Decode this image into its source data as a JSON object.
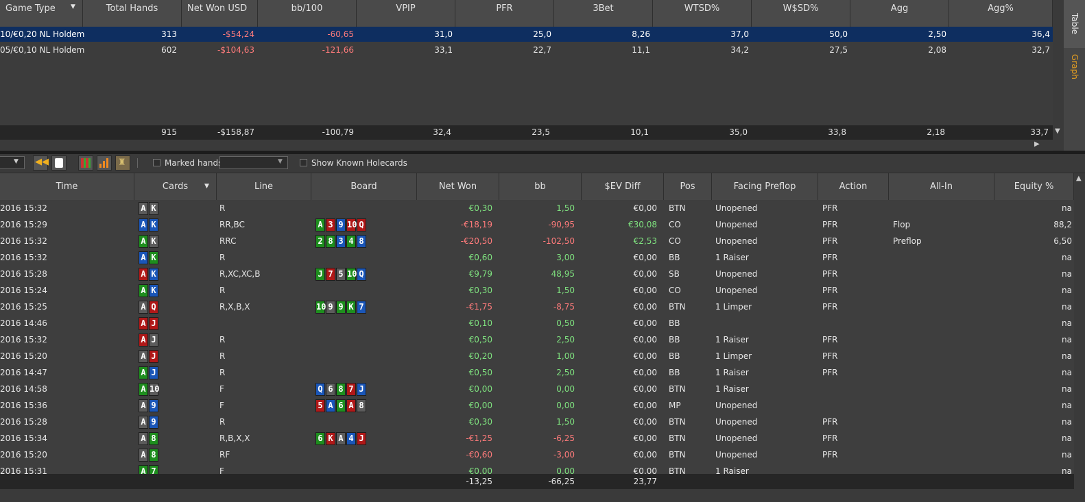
{
  "top_table": {
    "columns": [
      "Game Type",
      "Total Hands",
      "Net Won USD",
      "bb/100",
      "VPIP",
      "PFR",
      "3Bet",
      "WTSD%",
      "W$SD%",
      "Agg",
      "Agg%"
    ],
    "rows": [
      {
        "game": "10/€0,20 NL Holdem",
        "hands": "313",
        "net": "-$54,24",
        "bb100": "-60,65",
        "vpip": "31,0",
        "pfr": "25,0",
        "threebet": "8,26",
        "wtsd": "37,0",
        "wsd": "50,0",
        "agg": "2,50",
        "aggp": "36,4"
      },
      {
        "game": "05/€0,10 NL Holdem",
        "hands": "602",
        "net": "-$104,63",
        "bb100": "-121,66",
        "vpip": "33,1",
        "pfr": "22,7",
        "threebet": "11,1",
        "wtsd": "34,2",
        "wsd": "27,5",
        "agg": "2,08",
        "aggp": "32,7"
      }
    ],
    "totals": {
      "hands": "915",
      "net": "-$158,87",
      "bb100": "-100,79",
      "vpip": "32,4",
      "pfr": "23,5",
      "threebet": "10,1",
      "wtsd": "35,0",
      "wsd": "33,8",
      "agg": "2,18",
      "aggp": "33,7"
    }
  },
  "side_tabs": {
    "table": "Table",
    "graph": "Graph"
  },
  "toolbar": {
    "marked_hands": "Marked hands",
    "show_known": "Show Known Holecards"
  },
  "colors": {
    "selected_row": "#0e2e60",
    "negative": "#ff7b7b",
    "positive": "#7fe27f",
    "graph_tab": "#e8a020"
  },
  "hands_table": {
    "columns": [
      "Time",
      "Cards",
      "Line",
      "Board",
      "Net Won",
      "bb",
      "$EV Diff",
      "Pos",
      "Facing Preflop",
      "Action",
      "All-In",
      "Equity %"
    ],
    "rows": [
      {
        "time": "2016 15:32",
        "cards": [
          [
            "A",
            "s"
          ],
          [
            "K",
            "s"
          ]
        ],
        "line": "R",
        "board": [],
        "net": "€0,30",
        "bb": "1,50",
        "ev": "€0,00",
        "pos": "BTN",
        "facing": "Unopened",
        "action": "PFR",
        "allin": "",
        "equity": "na"
      },
      {
        "time": "2016 15:29",
        "cards": [
          [
            "A",
            "d"
          ],
          [
            "K",
            "d"
          ]
        ],
        "line": "RR,BC",
        "board": [
          [
            "A",
            "c"
          ],
          [
            "3",
            "h"
          ],
          [
            "9",
            "d"
          ],
          [
            "10",
            "h"
          ],
          [
            "Q",
            "h"
          ]
        ],
        "net": "-€18,19",
        "bb": "-90,95",
        "ev": "€30,08",
        "pos": "CO",
        "facing": "Unopened",
        "action": "PFR",
        "allin": "Flop",
        "equity": "88,2"
      },
      {
        "time": "2016 15:32",
        "cards": [
          [
            "A",
            "c"
          ],
          [
            "K",
            "s"
          ]
        ],
        "line": "RRC",
        "board": [
          [
            "2",
            "c"
          ],
          [
            "8",
            "c"
          ],
          [
            "3",
            "d"
          ],
          [
            "4",
            "c"
          ],
          [
            "8",
            "d"
          ]
        ],
        "net": "-€20,50",
        "bb": "-102,50",
        "ev": "€2,53",
        "pos": "CO",
        "facing": "Unopened",
        "action": "PFR",
        "allin": "Preflop",
        "equity": "6,50"
      },
      {
        "time": "2016 15:32",
        "cards": [
          [
            "A",
            "d"
          ],
          [
            "K",
            "c"
          ]
        ],
        "line": "R",
        "board": [],
        "net": "€0,60",
        "bb": "3,00",
        "ev": "€0,00",
        "pos": "BB",
        "facing": "1 Raiser",
        "action": "PFR",
        "allin": "",
        "equity": "na"
      },
      {
        "time": "2016 15:28",
        "cards": [
          [
            "A",
            "h"
          ],
          [
            "K",
            "d"
          ]
        ],
        "line": "R,XC,XC,B",
        "board": [
          [
            "J",
            "c"
          ],
          [
            "7",
            "h"
          ],
          [
            "5",
            "s"
          ],
          [
            "10",
            "c"
          ],
          [
            "Q",
            "d"
          ]
        ],
        "net": "€9,79",
        "bb": "48,95",
        "ev": "€0,00",
        "pos": "SB",
        "facing": "Unopened",
        "action": "PFR",
        "allin": "",
        "equity": "na"
      },
      {
        "time": "2016 15:24",
        "cards": [
          [
            "A",
            "c"
          ],
          [
            "K",
            "d"
          ]
        ],
        "line": "R",
        "board": [],
        "net": "€0,30",
        "bb": "1,50",
        "ev": "€0,00",
        "pos": "CO",
        "facing": "Unopened",
        "action": "PFR",
        "allin": "",
        "equity": "na"
      },
      {
        "time": "2016 15:25",
        "cards": [
          [
            "A",
            "s"
          ],
          [
            "Q",
            "h"
          ]
        ],
        "line": "R,X,B,X",
        "board": [
          [
            "10",
            "c"
          ],
          [
            "9",
            "s"
          ],
          [
            "9",
            "c"
          ],
          [
            "K",
            "c"
          ],
          [
            "7",
            "d"
          ]
        ],
        "net": "-€1,75",
        "bb": "-8,75",
        "ev": "€0,00",
        "pos": "BTN",
        "facing": "1 Limper",
        "action": "PFR",
        "allin": "",
        "equity": "na"
      },
      {
        "time": "2016 14:46",
        "cards": [
          [
            "A",
            "h"
          ],
          [
            "J",
            "h"
          ]
        ],
        "line": "",
        "board": [],
        "net": "€0,10",
        "bb": "0,50",
        "ev": "€0,00",
        "pos": "BB",
        "facing": "",
        "action": "",
        "allin": "",
        "equity": "na"
      },
      {
        "time": "2016 15:32",
        "cards": [
          [
            "A",
            "h"
          ],
          [
            "J",
            "s"
          ]
        ],
        "line": "R",
        "board": [],
        "net": "€0,50",
        "bb": "2,50",
        "ev": "€0,00",
        "pos": "BB",
        "facing": "1 Raiser",
        "action": "PFR",
        "allin": "",
        "equity": "na"
      },
      {
        "time": "2016 15:20",
        "cards": [
          [
            "A",
            "s"
          ],
          [
            "J",
            "h"
          ]
        ],
        "line": "R",
        "board": [],
        "net": "€0,20",
        "bb": "1,00",
        "ev": "€0,00",
        "pos": "BB",
        "facing": "1 Limper",
        "action": "PFR",
        "allin": "",
        "equity": "na"
      },
      {
        "time": "2016 14:47",
        "cards": [
          [
            "A",
            "c"
          ],
          [
            "J",
            "d"
          ]
        ],
        "line": "R",
        "board": [],
        "net": "€0,50",
        "bb": "2,50",
        "ev": "€0,00",
        "pos": "BB",
        "facing": "1 Raiser",
        "action": "PFR",
        "allin": "",
        "equity": "na"
      },
      {
        "time": "2016 14:58",
        "cards": [
          [
            "A",
            "c"
          ],
          [
            "10",
            "s"
          ]
        ],
        "line": "F",
        "board": [
          [
            "Q",
            "d"
          ],
          [
            "6",
            "s"
          ],
          [
            "8",
            "c"
          ],
          [
            "7",
            "h"
          ],
          [
            "J",
            "d"
          ]
        ],
        "net": "€0,00",
        "bb": "0,00",
        "ev": "€0,00",
        "pos": "BTN",
        "facing": "1 Raiser",
        "action": "",
        "allin": "",
        "equity": "na"
      },
      {
        "time": "2016 15:36",
        "cards": [
          [
            "A",
            "s"
          ],
          [
            "9",
            "d"
          ]
        ],
        "line": "F",
        "board": [
          [
            "5",
            "h"
          ],
          [
            "A",
            "d"
          ],
          [
            "6",
            "c"
          ],
          [
            "A",
            "h"
          ],
          [
            "8",
            "s"
          ]
        ],
        "net": "€0,00",
        "bb": "0,00",
        "ev": "€0,00",
        "pos": "MP",
        "facing": "Unopened",
        "action": "",
        "allin": "",
        "equity": "na"
      },
      {
        "time": "2016 15:28",
        "cards": [
          [
            "A",
            "s"
          ],
          [
            "9",
            "d"
          ]
        ],
        "line": "R",
        "board": [],
        "net": "€0,30",
        "bb": "1,50",
        "ev": "€0,00",
        "pos": "BTN",
        "facing": "Unopened",
        "action": "PFR",
        "allin": "",
        "equity": "na"
      },
      {
        "time": "2016 15:34",
        "cards": [
          [
            "A",
            "s"
          ],
          [
            "8",
            "c"
          ]
        ],
        "line": "R,B,X,X",
        "board": [
          [
            "6",
            "c"
          ],
          [
            "K",
            "h"
          ],
          [
            "A",
            "s"
          ],
          [
            "4",
            "d"
          ],
          [
            "J",
            "h"
          ]
        ],
        "net": "-€1,25",
        "bb": "-6,25",
        "ev": "€0,00",
        "pos": "BTN",
        "facing": "Unopened",
        "action": "PFR",
        "allin": "",
        "equity": "na"
      },
      {
        "time": "2016 15:20",
        "cards": [
          [
            "A",
            "s"
          ],
          [
            "8",
            "c"
          ]
        ],
        "line": "RF",
        "board": [],
        "net": "-€0,60",
        "bb": "-3,00",
        "ev": "€0,00",
        "pos": "BTN",
        "facing": "Unopened",
        "action": "PFR",
        "allin": "",
        "equity": "na"
      },
      {
        "time": "2016 15:31",
        "cards": [
          [
            "A",
            "c"
          ],
          [
            "7",
            "c"
          ]
        ],
        "line": "F",
        "board": [],
        "net": "€0,00",
        "bb": "0,00",
        "ev": "€0,00",
        "pos": "BTN",
        "facing": "1 Raiser",
        "action": "",
        "allin": "",
        "equity": "na"
      }
    ],
    "totals": {
      "net": "-13,25",
      "bb": "-66,25",
      "ev": "23,77"
    }
  }
}
